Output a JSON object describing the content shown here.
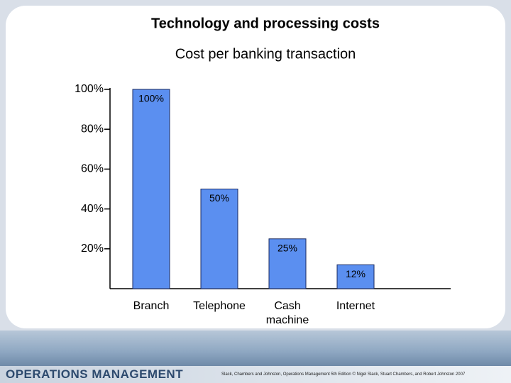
{
  "chart_data": {
    "type": "bar",
    "title": "Technology and processing costs",
    "subtitle": "Cost per banking transaction",
    "categories": [
      "Branch",
      "Telephone",
      "Cash machine",
      "Internet"
    ],
    "values": [
      100,
      50,
      25,
      12
    ],
    "value_labels": [
      "100%",
      "50%",
      "25%",
      "12%"
    ],
    "color": "#5b8ff0",
    "ylim": [
      0,
      100
    ],
    "yticks": [
      {
        "value": 20,
        "label": "20%"
      },
      {
        "value": 40,
        "label": "40%"
      },
      {
        "value": 60,
        "label": "60%"
      },
      {
        "value": 80,
        "label": "80%"
      },
      {
        "value": 100,
        "label": "100%"
      }
    ],
    "grid": false
  },
  "footer": {
    "brand": "OPERATIONS MANAGEMENT",
    "citation": "Slack, Chambers and Johnston, Operations Management 5th Edition © Nigel Slack, Stuart Chambers, and Robert Johnston 2007"
  }
}
